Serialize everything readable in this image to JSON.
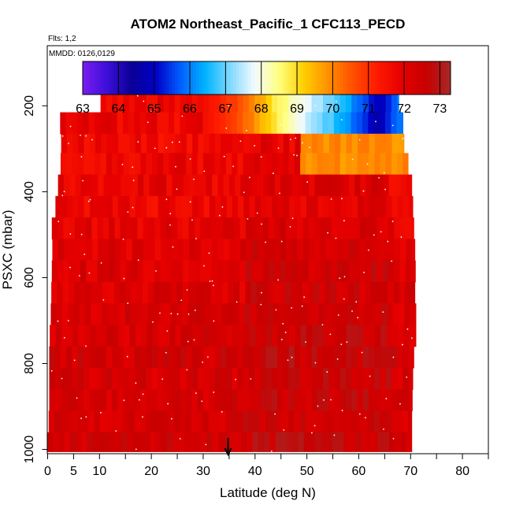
{
  "chart_data": {
    "type": "heatmap",
    "title": "ATOM2 Northeast_Pacific_1 CFC113_PECD",
    "flights_label": "Flts: 1,2",
    "dates_label": "MMDD: 0126,0129",
    "xlabel": "Latitude (deg N)",
    "ylabel": "PSXC (mbar)",
    "xlim": [
      0,
      85
    ],
    "ylim": [
      1010,
      60
    ],
    "x_ticks": [
      0,
      5,
      10,
      20,
      30,
      40,
      50,
      60,
      70,
      80
    ],
    "y_ticks": [
      200,
      400,
      600,
      800,
      1000
    ],
    "marker_latitude": 34.8,
    "colorbar": {
      "min": 63,
      "max": 73.3,
      "ticks": [
        63,
        64,
        65,
        66,
        67,
        68,
        69,
        70,
        71,
        72,
        73
      ],
      "colors": [
        "#7a1cf0",
        "#3b0fd8",
        "#0a0096",
        "#0000c8",
        "#0060ff",
        "#00b4ff",
        "#80d8ff",
        "#f2faff",
        "#ffff80",
        "#ffd000",
        "#ff9000",
        "#ff5000",
        "#ff1a00",
        "#e60000",
        "#c80000",
        "#a82828"
      ]
    },
    "layers": [
      {
        "p0": 165,
        "p1": 215,
        "x0": 10.2,
        "x1": 67.7,
        "v": 71.8,
        "upper_gradient": true
      },
      {
        "p0": 215,
        "p1": 265,
        "x0": 2.4,
        "x1": 68.5,
        "v": 71.8,
        "upper_gradient": true
      },
      {
        "p0": 265,
        "p1": 310,
        "x0": 2.6,
        "x1": 68.7,
        "v": 71.7,
        "yellow_block": [
          49.2,
          68.7
        ]
      },
      {
        "p0": 310,
        "p1": 360,
        "x0": 2.5,
        "x1": 69.5,
        "v": 71.8,
        "yellow_block": [
          48.8,
          69.5
        ]
      },
      {
        "p0": 360,
        "p1": 410,
        "x0": 2.0,
        "x1": 70.2,
        "v": 71.9
      },
      {
        "p0": 410,
        "p1": 460,
        "x0": 1.5,
        "x1": 70.4,
        "v": 71.8
      },
      {
        "p0": 460,
        "p1": 510,
        "x0": 0.8,
        "x1": 70.6,
        "v": 72.0
      },
      {
        "p0": 510,
        "p1": 560,
        "x0": 0.9,
        "x1": 70.8,
        "v": 72.1
      },
      {
        "p0": 560,
        "p1": 610,
        "x0": 0.8,
        "x1": 70.9,
        "v": 72.2
      },
      {
        "p0": 610,
        "p1": 660,
        "x0": 0.7,
        "x1": 70.8,
        "v": 72.2
      },
      {
        "p0": 660,
        "p1": 710,
        "x0": 0.6,
        "x1": 71.0,
        "v": 72.3
      },
      {
        "p0": 710,
        "p1": 760,
        "x0": 0.4,
        "x1": 71.0,
        "v": 72.3
      },
      {
        "p0": 760,
        "p1": 810,
        "x0": 0.3,
        "x1": 70.6,
        "v": 72.4
      },
      {
        "p0": 810,
        "p1": 860,
        "x0": 0.3,
        "x1": 70.4,
        "v": 72.3
      },
      {
        "p0": 860,
        "p1": 910,
        "x0": 0.3,
        "x1": 70.3,
        "v": 72.3
      },
      {
        "p0": 910,
        "p1": 960,
        "x0": 0.2,
        "x1": 70.2,
        "v": 72.3
      },
      {
        "p0": 960,
        "p1": 1005,
        "x0": -0.1,
        "x1": 70.2,
        "v": 72.4
      }
    ],
    "upper_gradient_stops": [
      {
        "x": 10,
        "v": 71.8
      },
      {
        "x": 25,
        "v": 71.8
      },
      {
        "x": 33,
        "v": 71.3
      },
      {
        "x": 39,
        "v": 70.2
      },
      {
        "x": 43,
        "v": 69.0
      },
      {
        "x": 47,
        "v": 68.3
      },
      {
        "x": 52,
        "v": 67.4
      },
      {
        "x": 57,
        "v": 66.6
      },
      {
        "x": 61,
        "v": 65.6
      },
      {
        "x": 64,
        "v": 64.8
      },
      {
        "x": 68,
        "v": 66.2
      }
    ]
  }
}
